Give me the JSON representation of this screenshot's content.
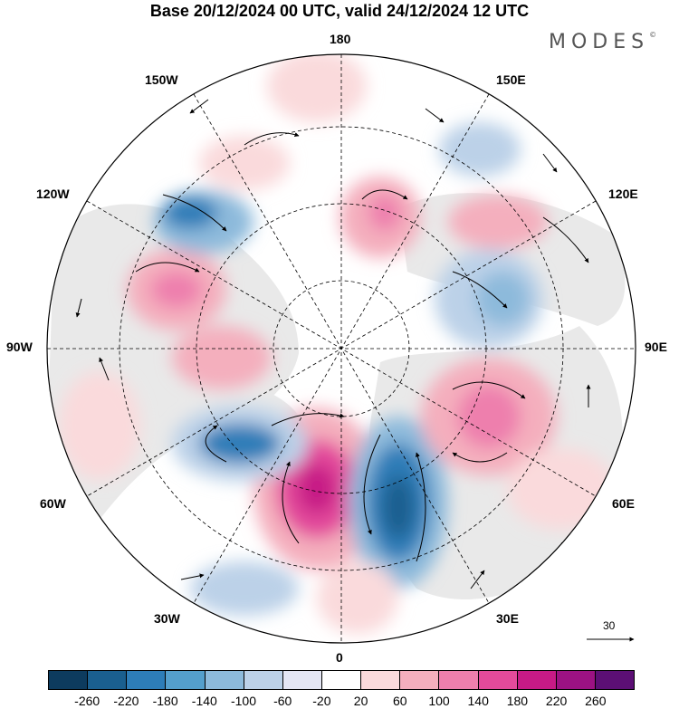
{
  "title": "Base 20/12/2024 00 UTC, valid 24/12/2024 12 UTC",
  "brand": {
    "name": "MODES",
    "mark": "©"
  },
  "longitude_labels": {
    "lon_180": "180",
    "lon_150w": "150W",
    "lon_150e": "150E",
    "lon_120w": "120W",
    "lon_120e": "120E",
    "lon_90w": "90W",
    "lon_90e": "90E",
    "lon_60w": "60W",
    "lon_60e": "60E",
    "lon_30w": "30W",
    "lon_30e": "30E",
    "lon_0": "0"
  },
  "reference_vector": {
    "value": "30",
    "icon": "arrow-right-icon"
  },
  "colorbar": {
    "colors": [
      "#0d3b5e",
      "#1a5f8f",
      "#2d7db8",
      "#549fcc",
      "#8dbadb",
      "#bcd1e8",
      "#e4e6f4",
      "#ffffff",
      "#fadadc",
      "#f4afbd",
      "#ee7fad",
      "#e34a9b",
      "#c71a86",
      "#9c1283",
      "#5c0f75"
    ],
    "ticks": [
      "-260",
      "-220",
      "-180",
      "-140",
      "-100",
      "-60",
      "-20",
      "20",
      "60",
      "100",
      "140",
      "180",
      "220",
      "260"
    ]
  },
  "colors": {
    "land": "#ececec",
    "positive": "#e34a9b",
    "negative": "#2d7db8"
  }
}
